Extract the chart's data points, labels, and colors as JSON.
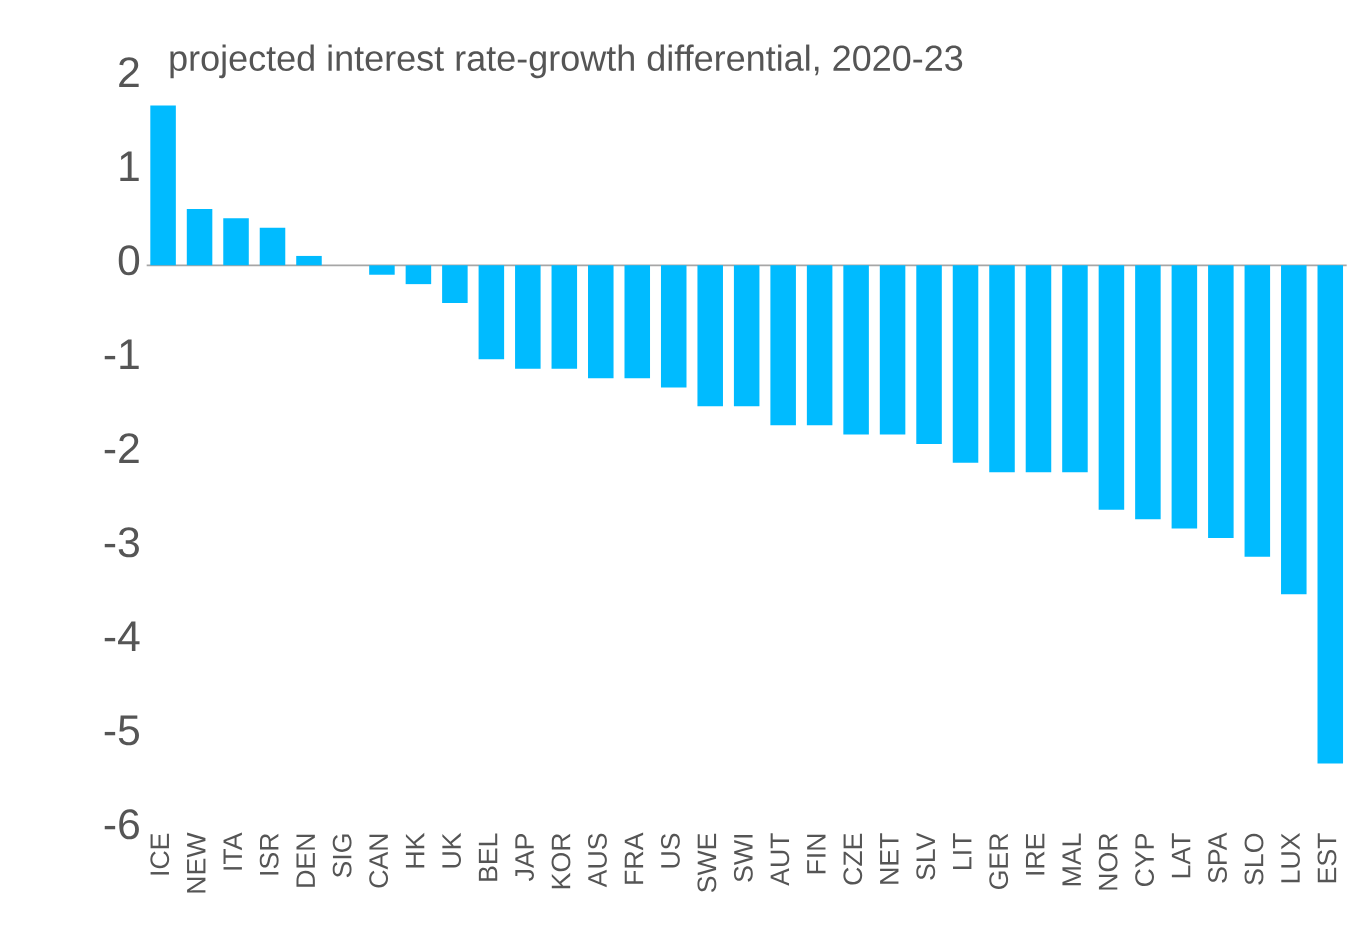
{
  "chart_data": {
    "type": "bar",
    "title": "projected interest rate-growth differential, 2020-23",
    "categories": [
      "ICE",
      "NEW",
      "ITA",
      "ISR",
      "DEN",
      "SIG",
      "CAN",
      "HK",
      "UK",
      "BEL",
      "JAP",
      "KOR",
      "AUS",
      "FRA",
      "US",
      "SWE",
      "SWI",
      "AUT",
      "FIN",
      "CZE",
      "NET",
      "SLV",
      "LIT",
      "GER",
      "IRE",
      "MAL",
      "NOR",
      "CYP",
      "LAT",
      "SPA",
      "SLO",
      "LUX",
      "EST"
    ],
    "values": [
      1.7,
      0.6,
      0.5,
      0.4,
      0.1,
      0,
      -0.1,
      -0.2,
      -0.4,
      -1.0,
      -1.1,
      -1.1,
      -1.2,
      -1.2,
      -1.3,
      -1.5,
      -1.5,
      -1.7,
      -1.7,
      -1.8,
      -1.8,
      -1.9,
      -2.1,
      -2.2,
      -2.2,
      -2.2,
      -2.6,
      -2.7,
      -2.8,
      -2.9,
      -3.1,
      -3.5,
      -5.3
    ],
    "color": "#00bbff",
    "ylim": [
      -6,
      2
    ],
    "yticks": [
      -6,
      -5,
      -4,
      -3,
      -2,
      -1,
      0,
      1,
      2
    ]
  }
}
